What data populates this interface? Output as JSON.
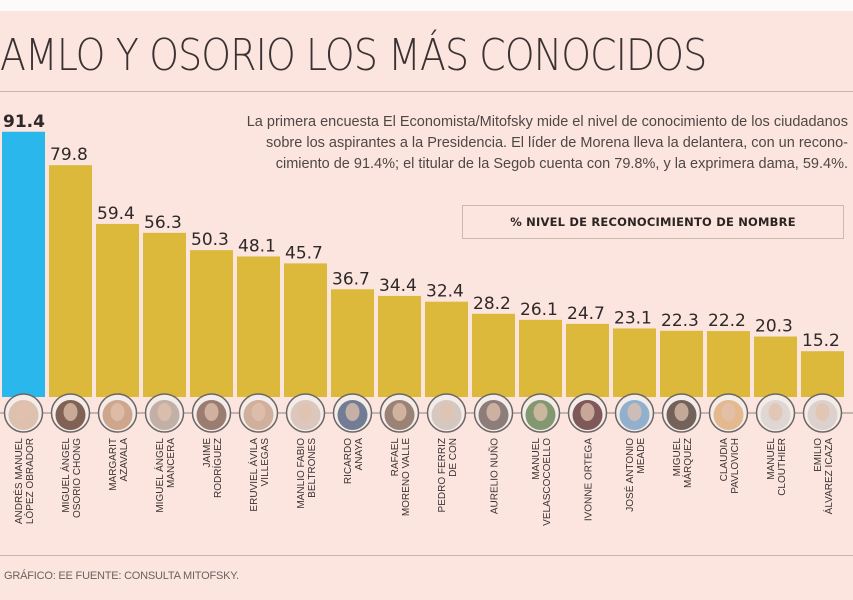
{
  "title": "AMLO Y OSORIO LOS MÁS CONOCIDOS",
  "subtitle_lines": [
    "La primera encuesta El Economista/Mitofsky mide el nivel de conocimiento de los ciudadanos",
    "sobre los aspirantes a la Presidencia. El líder de Morena lleva la delantera, con un recono-",
    "cimiento de 91.4%; el titular de la Segob cuenta con 79.8%, y la exprimera dama, 59.4%."
  ],
  "footer": "GRÁFICO: EE  FUENTE: CONSULTA MITOFSKY.",
  "colors": {
    "highlight": "#2ab7ec",
    "bar": "#dcb93a",
    "background": "#fbe5de"
  },
  "chart_data": {
    "type": "bar",
    "title": "AMLO Y OSORIO LOS MÁS CONOCIDOS",
    "legend": "% NIVEL DE RECONOCIMIENTO DE NOMBRE",
    "legend_position": "top-right",
    "xlabel": "",
    "ylabel": "% nivel de reconocimiento de nombre",
    "ylim": [
      0,
      100
    ],
    "grid": false,
    "categories": [
      [
        "ANDRÉS MANUEL",
        "LÓPEZ OBRADOR"
      ],
      [
        "MIGUEL ÁNGEL",
        "OSORIO CHONG"
      ],
      [
        "MARGARIT",
        "AZAVALA"
      ],
      [
        "MIGUEL ÁNGEL",
        "MANCERA"
      ],
      [
        "JAIME",
        "RODRÍGUEZ"
      ],
      [
        "ERUVIEL ÁVILA",
        "VILLEGAS"
      ],
      [
        "MANLIO FABIO",
        "BELTRONES"
      ],
      [
        "RICARDO",
        "ANAYA"
      ],
      [
        "RAFAEL",
        "MORENO VALLE"
      ],
      [
        "PEDRO FERRIZ",
        "DE CON"
      ],
      [
        "AURELIO NUÑO"
      ],
      [
        "MANUEL",
        "VELASCOCOELLO"
      ],
      [
        "IVONNE ORTEGA"
      ],
      [
        "JOSÉ ANTONIO",
        "MEADE"
      ],
      [
        "MIGUEL",
        "MÁRQUEZ"
      ],
      [
        "CLAUDIA",
        "PAVLOVICH"
      ],
      [
        "MANUEL",
        "CLOUTHIER"
      ],
      [
        "EMILIO",
        "ÁLVAREZ ICAZA"
      ]
    ],
    "values": [
      91.4,
      79.8,
      59.4,
      56.3,
      50.3,
      48.1,
      45.7,
      36.7,
      34.4,
      32.4,
      28.2,
      26.1,
      24.7,
      23.1,
      22.3,
      22.2,
      20.3,
      15.2
    ],
    "value_labels": [
      "91.4",
      "79.8",
      "59.4",
      "56.3",
      "50.3",
      "48.1",
      "45.7",
      "36.7",
      "34.4",
      "32.4",
      "28.2",
      "26.1",
      "24.7",
      "23.1",
      "22.3",
      "22.2",
      "20.3",
      "15.2"
    ],
    "highlight_index": 0
  }
}
